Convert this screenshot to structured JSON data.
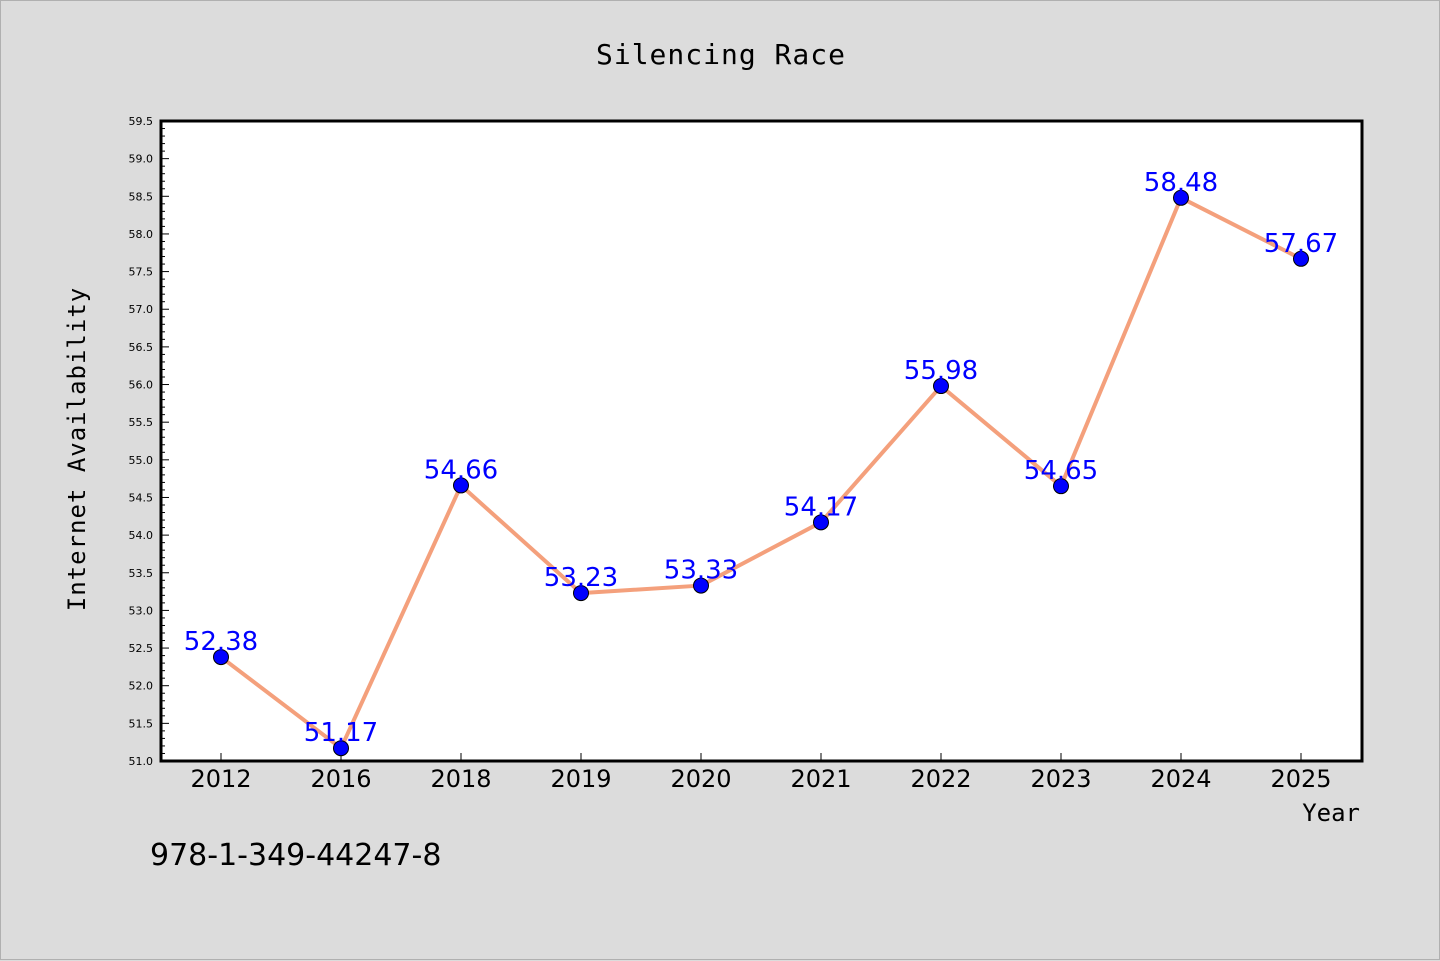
{
  "chart_data": {
    "type": "line",
    "title": "Silencing Race",
    "xlabel": "Year",
    "ylabel": "Internet Availability",
    "categories": [
      "2012",
      "2016",
      "2018",
      "2019",
      "2020",
      "2021",
      "2022",
      "2023",
      "2024",
      "2025"
    ],
    "series": [
      {
        "values": [
          52.38,
          51.17,
          54.66,
          53.23,
          53.33,
          54.17,
          55.98,
          54.65,
          58.48,
          57.67
        ]
      }
    ],
    "data_labels": [
      "52.38",
      "51.17",
      "54.66",
      "53.23",
      "53.33",
      "54.17",
      "55.98",
      "54.65",
      "58.48",
      "57.67"
    ],
    "ylim": [
      51.0,
      59.5
    ],
    "yticks": [
      "51.0",
      "51.5",
      "52.0",
      "52.5",
      "53.0",
      "53.5",
      "54.0",
      "54.5",
      "55.0",
      "55.5",
      "56.0",
      "56.5",
      "57.0",
      "57.5",
      "58.0",
      "58.5",
      "59.0",
      "59.5"
    ],
    "grid": false,
    "legend": "none",
    "colors": {
      "line": "#f4a07c",
      "marker": "#0000ff",
      "label": "#0000ff",
      "background": "#dcdcdc",
      "plot_area": "#ffffff"
    }
  },
  "footer_text": "978-1-349-44247-8"
}
